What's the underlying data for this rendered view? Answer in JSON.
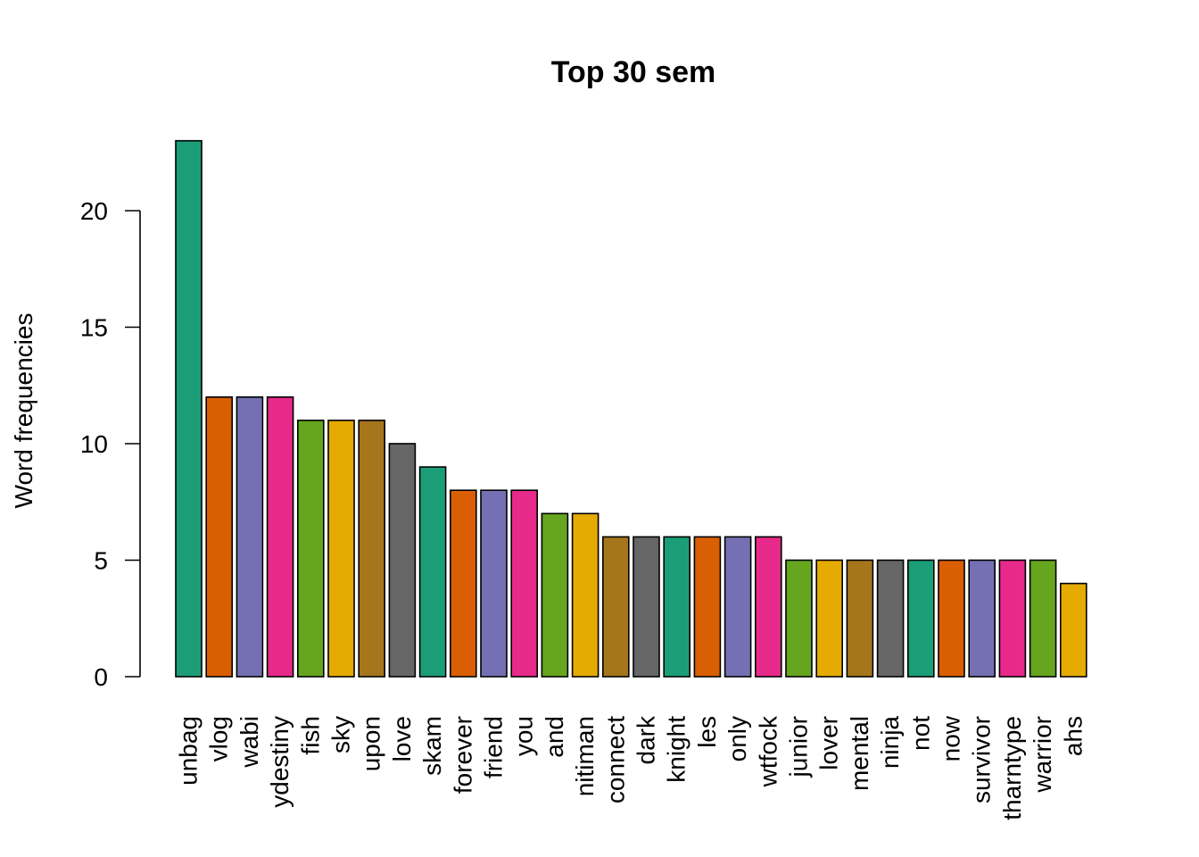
{
  "chart_data": {
    "type": "bar",
    "title": "Top 30 sem",
    "xlabel": "",
    "ylabel": "Word frequencies",
    "ylim": [
      0,
      23
    ],
    "yticks": [
      0,
      5,
      10,
      15,
      20
    ],
    "grid": false,
    "legend": "none",
    "palette": [
      "#1b9e77",
      "#d95f02",
      "#7570b3",
      "#e7298a",
      "#66a61e",
      "#e6ab02",
      "#a6761d",
      "#666666"
    ],
    "categories": [
      "unbag",
      "vlog",
      "wabi",
      "ydestiny",
      "fish",
      "sky",
      "upon",
      "love",
      "skam",
      "forever",
      "friend",
      "you",
      "and",
      "nitiman",
      "connect",
      "dark",
      "knight",
      "les",
      "only",
      "wtfock",
      "junior",
      "lover",
      "mental",
      "ninja",
      "not",
      "now",
      "survivor",
      "tharntype",
      "warrior",
      "ahs"
    ],
    "values": [
      23,
      12,
      12,
      12,
      11,
      11,
      11,
      10,
      9,
      8,
      8,
      8,
      7,
      7,
      6,
      6,
      6,
      6,
      6,
      6,
      5,
      5,
      5,
      5,
      5,
      5,
      5,
      5,
      5,
      4
    ]
  }
}
